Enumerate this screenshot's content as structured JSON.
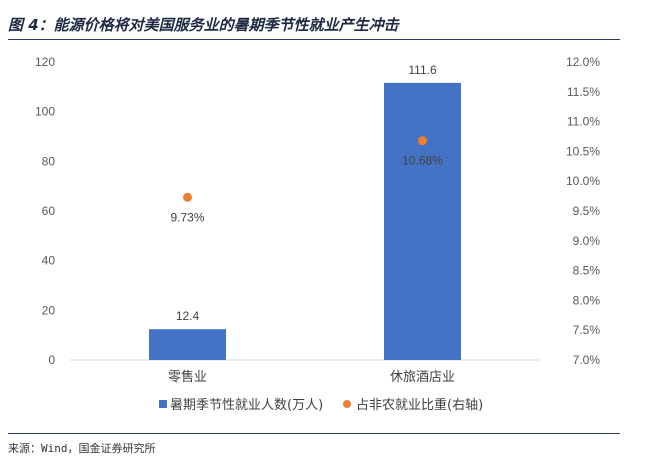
{
  "title": "图 4：能源价格将对美国服务业的暑期季节性就业产生冲击",
  "source": "来源：Wind，国金证券研究所",
  "chart_data": {
    "type": "bar",
    "categories": [
      "零售业",
      "休旅酒店业"
    ],
    "series": [
      {
        "name": "暑期季节性就业人数(万人)",
        "type": "bar",
        "axis": "left",
        "values": [
          12.4,
          111.6
        ],
        "labels": [
          "12.4",
          "111.6"
        ],
        "color": "#4472C4"
      },
      {
        "name": "占非农就业比重(右轴)",
        "type": "scatter",
        "axis": "right",
        "values": [
          9.73,
          10.68
        ],
        "labels": [
          "9.73%",
          "10.68%"
        ],
        "color": "#ED7D31"
      }
    ],
    "ylim": [
      0,
      120
    ],
    "yticks": [
      "0",
      "20",
      "40",
      "60",
      "80",
      "100",
      "120"
    ],
    "y2lim": [
      7.0,
      12.0
    ],
    "y2ticks": [
      "7.0%",
      "7.5%",
      "8.0%",
      "8.5%",
      "9.0%",
      "9.5%",
      "10.0%",
      "10.5%",
      "11.0%",
      "11.5%",
      "12.0%"
    ],
    "grid": false,
    "legend": "bottom"
  }
}
